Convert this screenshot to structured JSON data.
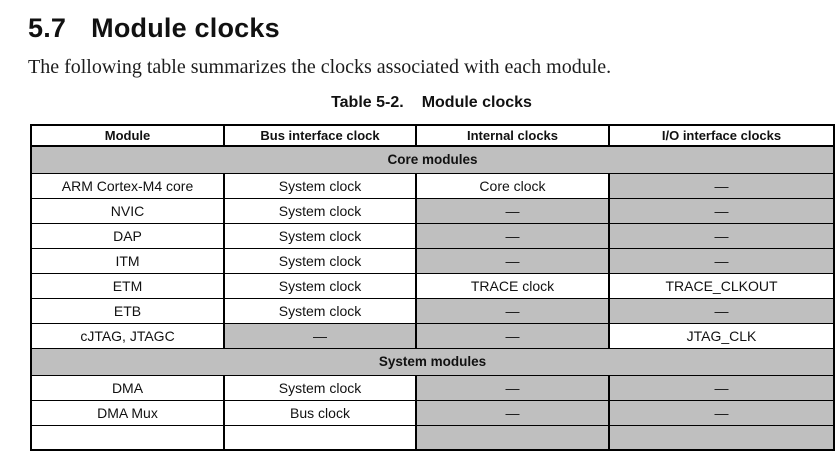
{
  "page": {
    "heading_number": "5.7",
    "heading_title": "Module clocks",
    "intro_text": "The following table summarizes the clocks associated with each module.",
    "caption_label": "Table 5-2.",
    "caption_title": "Module clocks"
  },
  "colors": {
    "cell_gray": "#bfbfbf",
    "border": "#000000"
  },
  "table": {
    "columns": [
      "Module",
      "Bus interface clock",
      "Internal clocks",
      "I/O interface clocks"
    ],
    "rows": [
      {
        "type": "section",
        "label": "Core modules"
      },
      {
        "type": "data",
        "cells": [
          {
            "text": "ARM Cortex-M4 core",
            "gray": false
          },
          {
            "text": "System clock",
            "gray": false
          },
          {
            "text": "Core clock",
            "gray": false
          },
          {
            "text": "—",
            "gray": true
          }
        ]
      },
      {
        "type": "data",
        "cells": [
          {
            "text": "NVIC",
            "gray": false
          },
          {
            "text": "System clock",
            "gray": false
          },
          {
            "text": "—",
            "gray": true
          },
          {
            "text": "—",
            "gray": true
          }
        ]
      },
      {
        "type": "data",
        "cells": [
          {
            "text": "DAP",
            "gray": false
          },
          {
            "text": "System clock",
            "gray": false
          },
          {
            "text": "—",
            "gray": true
          },
          {
            "text": "—",
            "gray": true
          }
        ]
      },
      {
        "type": "data",
        "cells": [
          {
            "text": "ITM",
            "gray": false
          },
          {
            "text": "System clock",
            "gray": false
          },
          {
            "text": "—",
            "gray": true
          },
          {
            "text": "—",
            "gray": true
          }
        ]
      },
      {
        "type": "data",
        "cells": [
          {
            "text": "ETM",
            "gray": false
          },
          {
            "text": "System clock",
            "gray": false
          },
          {
            "text": "TRACE clock",
            "gray": false
          },
          {
            "text": "TRACE_CLKOUT",
            "gray": false
          }
        ]
      },
      {
        "type": "data",
        "cells": [
          {
            "text": "ETB",
            "gray": false
          },
          {
            "text": "System clock",
            "gray": false
          },
          {
            "text": "—",
            "gray": true
          },
          {
            "text": "—",
            "gray": true
          }
        ]
      },
      {
        "type": "data",
        "cells": [
          {
            "text": "cJTAG, JTAGC",
            "gray": false
          },
          {
            "text": "—",
            "gray": true
          },
          {
            "text": "—",
            "gray": true
          },
          {
            "text": "JTAG_CLK",
            "gray": false
          }
        ]
      },
      {
        "type": "section",
        "label": "System modules"
      },
      {
        "type": "data",
        "cells": [
          {
            "text": "DMA",
            "gray": false
          },
          {
            "text": "System clock",
            "gray": false
          },
          {
            "text": "—",
            "gray": true
          },
          {
            "text": "—",
            "gray": true
          }
        ]
      },
      {
        "type": "data",
        "cells": [
          {
            "text": "DMA Mux",
            "gray": false
          },
          {
            "text": "Bus clock",
            "gray": false
          },
          {
            "text": "—",
            "gray": true
          },
          {
            "text": "—",
            "gray": true
          }
        ]
      },
      {
        "type": "data",
        "cells": [
          {
            "text": "",
            "gray": false
          },
          {
            "text": "",
            "gray": false
          },
          {
            "text": "",
            "gray": true
          },
          {
            "text": "",
            "gray": true
          }
        ]
      }
    ]
  }
}
